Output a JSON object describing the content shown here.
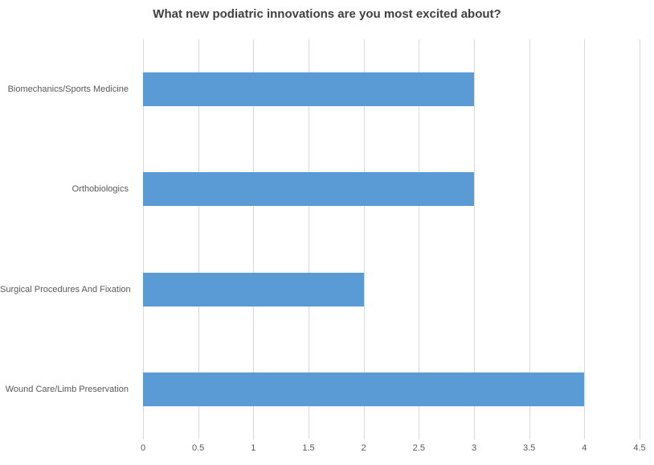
{
  "chart_data": {
    "type": "bar",
    "orientation": "horizontal",
    "title": "What new podiatric innovations are you most excited about?",
    "categories": [
      "Biomechanics/Sports Medicine",
      "Orthobiologics",
      "Surgical Procedures And Fixation",
      "Wound Care/Limb Preservation"
    ],
    "values": [
      3,
      3,
      2,
      4
    ],
    "xlabel": "",
    "ylabel": "",
    "xlim": [
      0,
      4.5
    ],
    "x_tick_values": [
      0,
      0.5,
      1,
      1.5,
      2,
      2.5,
      3,
      3.5,
      4,
      4.5
    ],
    "x_tick_labels": [
      "0",
      "0.5",
      "1",
      "1.5",
      "2",
      "2.5",
      "3",
      "3.5",
      "4",
      "4.5"
    ],
    "grid": "vertical-major-only",
    "legend_position": "none",
    "colors": {
      "bar_fill": "#5b9bd5",
      "gridline": "#d9d9d9",
      "title_text": "#404040",
      "axis_text": "#595959",
      "background": "#ffffff"
    }
  }
}
